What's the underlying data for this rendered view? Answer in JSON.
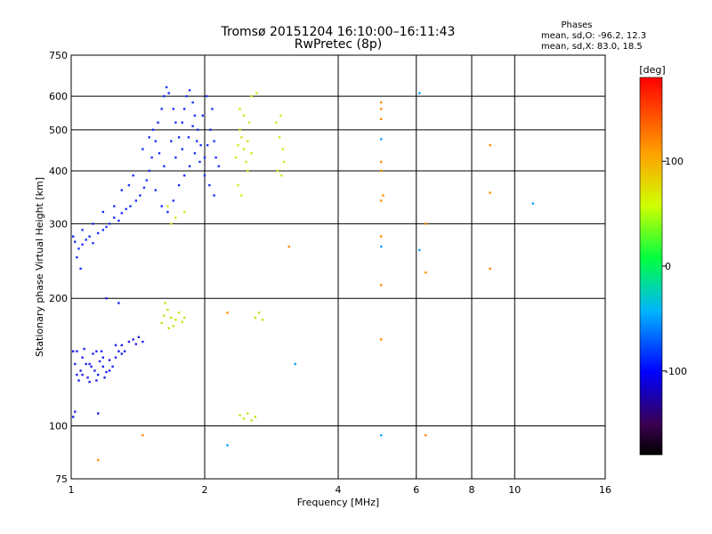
{
  "chart_data": {
    "type": "scatter",
    "title": "Tromsø 20151204 16:10:00–16:11:43",
    "subtitle": "RwPretec (8p)",
    "xlabel": "Frequency [MHz]",
    "ylabel": "Stationary phase Virtual Height [km]",
    "xscale": "log",
    "yscale": "log",
    "xlim": [
      1,
      16
    ],
    "ylim": [
      75,
      750
    ],
    "xticks": [
      1,
      2,
      4,
      6,
      8,
      10,
      16
    ],
    "xtick_labels": [
      "1",
      "2",
      "4",
      "6",
      "8",
      "10",
      "16"
    ],
    "yticks": [
      75,
      100,
      200,
      300,
      400,
      500,
      600,
      750
    ],
    "ytick_labels": [
      "75",
      "100",
      "200",
      "300",
      "400",
      "500",
      "600",
      "750"
    ],
    "grid": true,
    "stats": {
      "header": "Phases",
      "line_o": "mean, sd,O: -96.2, 12.3",
      "line_x": "mean, sd,X: 83.0, 18.5"
    },
    "colorbar": {
      "label": "[deg]",
      "range": [
        -180,
        180
      ],
      "ticks": [
        100,
        0,
        -100
      ],
      "tick_labels": [
        "100",
        "0",
        "-100"
      ]
    },
    "series": [
      {
        "role": "O-mode F2 trace",
        "phase_deg": -96,
        "color": "#1a32ff",
        "points": [
          [
            1.02,
            272
          ],
          [
            1.04,
            262
          ],
          [
            1.06,
            268
          ],
          [
            1.08,
            275
          ],
          [
            1.1,
            280
          ],
          [
            1.12,
            270
          ],
          [
            1.15,
            285
          ],
          [
            1.18,
            290
          ],
          [
            1.2,
            295
          ],
          [
            1.22,
            300
          ],
          [
            1.25,
            310
          ],
          [
            1.28,
            305
          ],
          [
            1.3,
            318
          ],
          [
            1.33,
            325
          ],
          [
            1.36,
            330
          ],
          [
            1.4,
            340
          ],
          [
            1.43,
            350
          ],
          [
            1.46,
            365
          ],
          [
            1.48,
            380
          ],
          [
            1.5,
            400
          ],
          [
            1.52,
            430
          ],
          [
            1.55,
            470
          ],
          [
            1.57,
            520
          ],
          [
            1.6,
            560
          ],
          [
            1.62,
            600
          ],
          [
            1.64,
            630
          ],
          [
            1.66,
            610
          ],
          [
            1.7,
            560
          ],
          [
            1.72,
            520
          ],
          [
            1.75,
            480
          ],
          [
            1.78,
            520
          ],
          [
            1.8,
            560
          ],
          [
            1.82,
            600
          ],
          [
            1.85,
            620
          ],
          [
            1.88,
            580
          ],
          [
            1.9,
            540
          ],
          [
            1.93,
            500
          ],
          [
            1.96,
            460
          ],
          [
            2.0,
            430
          ],
          [
            2.03,
            460
          ],
          [
            2.06,
            500
          ],
          [
            2.1,
            470
          ],
          [
            2.12,
            430
          ],
          [
            2.15,
            410
          ],
          [
            1.55,
            360
          ],
          [
            1.6,
            330
          ],
          [
            1.65,
            320
          ],
          [
            1.7,
            340
          ],
          [
            1.75,
            370
          ],
          [
            1.8,
            390
          ],
          [
            1.85,
            410
          ],
          [
            1.9,
            440
          ],
          [
            1.95,
            420
          ],
          [
            2.0,
            390
          ],
          [
            2.05,
            370
          ],
          [
            2.1,
            350
          ],
          [
            1.45,
            450
          ],
          [
            1.5,
            480
          ],
          [
            1.53,
            500
          ],
          [
            1.58,
            440
          ],
          [
            1.62,
            410
          ],
          [
            1.68,
            470
          ],
          [
            1.72,
            430
          ],
          [
            1.78,
            450
          ],
          [
            1.84,
            480
          ],
          [
            1.88,
            510
          ],
          [
            1.92,
            470
          ],
          [
            1.98,
            540
          ],
          [
            2.02,
            600
          ],
          [
            2.08,
            560
          ],
          [
            1.3,
            360
          ],
          [
            1.35,
            370
          ],
          [
            1.38,
            390
          ],
          [
            1.25,
            330
          ],
          [
            1.18,
            320
          ],
          [
            1.12,
            300
          ],
          [
            1.06,
            290
          ],
          [
            1.03,
            250
          ],
          [
            1.05,
            235
          ],
          [
            1.01,
            280
          ]
        ]
      },
      {
        "role": "O-mode E/F1 low trace",
        "phase_deg": -105,
        "color": "#2020f0",
        "points": [
          [
            1.01,
            150
          ],
          [
            1.02,
            140
          ],
          [
            1.03,
            132
          ],
          [
            1.04,
            128
          ],
          [
            1.05,
            135
          ],
          [
            1.06,
            145
          ],
          [
            1.07,
            152
          ],
          [
            1.08,
            140
          ],
          [
            1.09,
            130
          ],
          [
            1.1,
            127
          ],
          [
            1.11,
            138
          ],
          [
            1.12,
            148
          ],
          [
            1.13,
            135
          ],
          [
            1.14,
            128
          ],
          [
            1.15,
            132
          ],
          [
            1.16,
            142
          ],
          [
            1.17,
            150
          ],
          [
            1.18,
            138
          ],
          [
            1.19,
            130
          ],
          [
            1.2,
            134
          ],
          [
            1.22,
            143
          ],
          [
            1.24,
            138
          ],
          [
            1.26,
            145
          ],
          [
            1.28,
            150
          ],
          [
            1.3,
            155
          ],
          [
            1.32,
            150
          ],
          [
            1.35,
            158
          ],
          [
            1.38,
            160
          ],
          [
            1.4,
            156
          ],
          [
            1.42,
            162
          ],
          [
            1.45,
            158
          ],
          [
            1.03,
            150
          ],
          [
            1.06,
            132
          ],
          [
            1.1,
            140
          ],
          [
            1.14,
            150
          ],
          [
            1.18,
            145
          ],
          [
            1.22,
            135
          ],
          [
            1.26,
            155
          ],
          [
            1.3,
            148
          ],
          [
            1.01,
            105
          ],
          [
            1.02,
            108
          ],
          [
            1.15,
            107
          ],
          [
            1.2,
            200
          ],
          [
            1.28,
            195
          ]
        ]
      },
      {
        "role": "X-mode F trace",
        "phase_deg": 85,
        "color": "#d8e21c",
        "points": [
          [
            2.35,
            430
          ],
          [
            2.38,
            460
          ],
          [
            2.4,
            500
          ],
          [
            2.42,
            480
          ],
          [
            2.45,
            450
          ],
          [
            2.48,
            420
          ],
          [
            2.5,
            470
          ],
          [
            2.52,
            520
          ],
          [
            2.55,
            440
          ],
          [
            2.4,
            560
          ],
          [
            2.45,
            540
          ],
          [
            2.5,
            400
          ],
          [
            2.38,
            370
          ],
          [
            2.42,
            350
          ],
          [
            2.9,
            520
          ],
          [
            2.95,
            480
          ],
          [
            3.0,
            450
          ],
          [
            3.02,
            420
          ],
          [
            2.92,
            400
          ],
          [
            2.98,
            390
          ],
          [
            2.97,
            540
          ],
          [
            2.55,
            600
          ],
          [
            2.62,
            610
          ],
          [
            1.65,
            330
          ],
          [
            1.72,
            310
          ],
          [
            1.8,
            320
          ],
          [
            1.68,
            300
          ]
        ]
      },
      {
        "role": "X-mode E trace",
        "phase_deg": 75,
        "color": "#b8e81a",
        "points": [
          [
            1.6,
            175
          ],
          [
            1.62,
            182
          ],
          [
            1.65,
            188
          ],
          [
            1.68,
            180
          ],
          [
            1.7,
            172
          ],
          [
            1.72,
            178
          ],
          [
            1.75,
            185
          ],
          [
            1.78,
            176
          ],
          [
            1.8,
            180
          ],
          [
            1.63,
            195
          ],
          [
            1.66,
            170
          ],
          [
            2.6,
            180
          ],
          [
            2.65,
            185
          ],
          [
            2.7,
            178
          ],
          [
            2.4,
            106
          ],
          [
            2.45,
            104
          ],
          [
            2.5,
            107
          ],
          [
            2.55,
            103
          ],
          [
            2.6,
            105
          ]
        ]
      },
      {
        "role": "scattered returns",
        "phase_deg": 120,
        "color": "#ff8c00",
        "points": [
          [
            5.0,
            580
          ],
          [
            5.0,
            560
          ],
          [
            5.0,
            530
          ],
          [
            5.0,
            420
          ],
          [
            5.0,
            400
          ],
          [
            5.05,
            350
          ],
          [
            5.0,
            340
          ],
          [
            5.0,
            280
          ],
          [
            5.0,
            215
          ],
          [
            5.0,
            160
          ],
          [
            6.3,
            300
          ],
          [
            6.3,
            230
          ],
          [
            6.3,
            95
          ],
          [
            8.8,
            460
          ],
          [
            8.8,
            355
          ],
          [
            8.8,
            235
          ],
          [
            3.1,
            265
          ],
          [
            2.25,
            185
          ],
          [
            1.45,
            95
          ],
          [
            1.15,
            83
          ]
        ]
      },
      {
        "role": "scattered returns",
        "phase_deg": -60,
        "color": "#0aa0ff",
        "points": [
          [
            5.0,
            475
          ],
          [
            6.1,
            610
          ],
          [
            5.0,
            265
          ],
          [
            5.0,
            95
          ],
          [
            6.1,
            260
          ],
          [
            11.0,
            335
          ],
          [
            3.2,
            140
          ],
          [
            2.25,
            90
          ]
        ]
      }
    ]
  }
}
